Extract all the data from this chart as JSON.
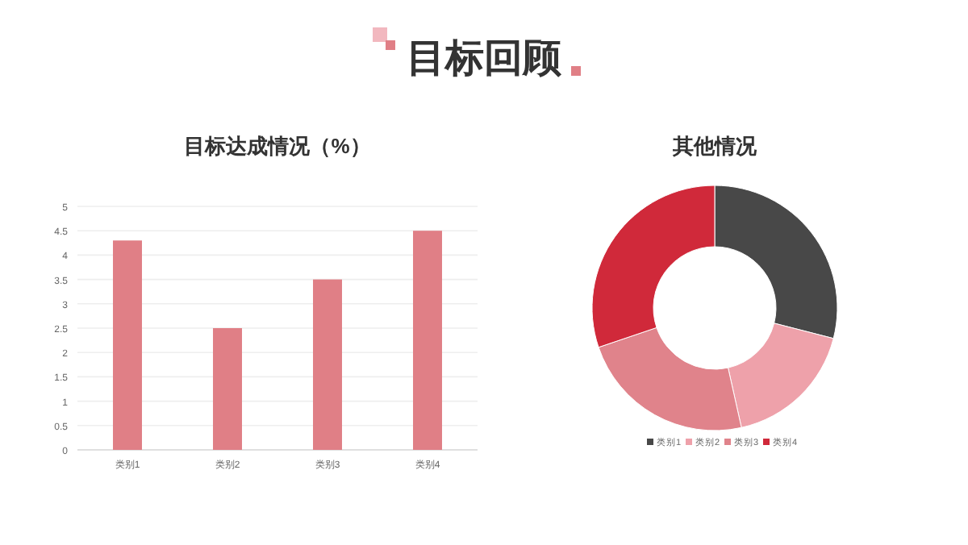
{
  "chart_data": [
    {
      "type": "bar",
      "title": "目标达成情况（%）",
      "annotations": [
        "目标回顾"
      ],
      "categories": [
        "类别1",
        "类别2",
        "类别3",
        "类别4"
      ],
      "values": [
        4.3,
        2.5,
        3.5,
        4.5
      ],
      "color": "#e07f86",
      "ylim": [
        0,
        5
      ],
      "yticks": [
        0,
        0.5,
        1,
        1.5,
        2,
        2.5,
        3,
        3.5,
        4,
        4.5,
        5
      ],
      "grid": "y"
    },
    {
      "type": "donut",
      "title": "其他情况",
      "categories": [
        "类别1",
        "类别2",
        "类别3",
        "类别4"
      ],
      "values": [
        29,
        17.5,
        23.3,
        30.2
      ],
      "colors": [
        "#484848",
        "#eea1aa",
        "#e0838b",
        "#d0293a"
      ],
      "legend": "bottom"
    }
  ]
}
